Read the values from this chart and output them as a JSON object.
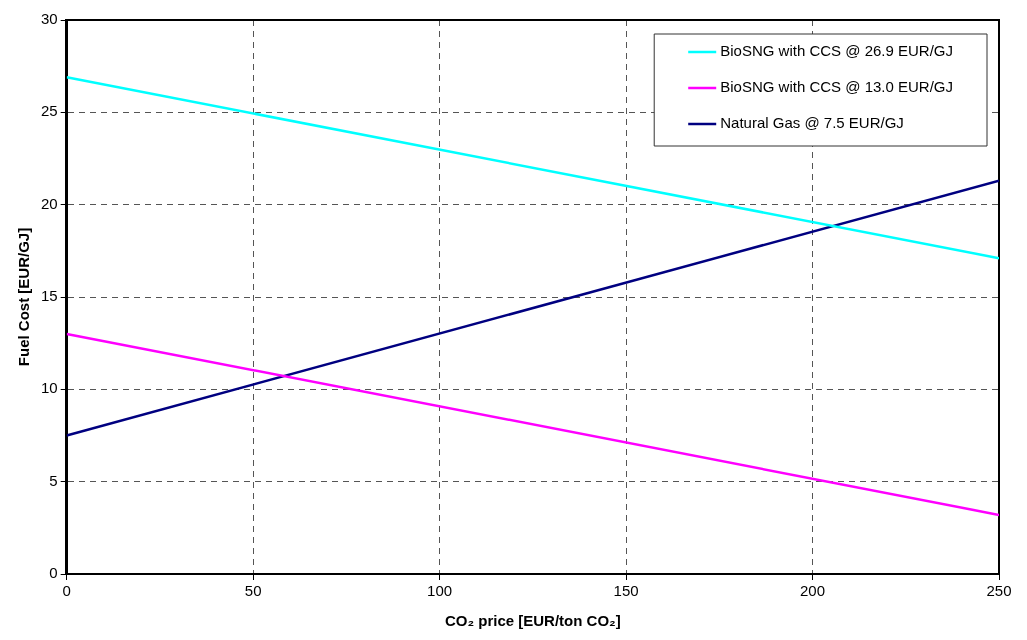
{
  "chart_data": {
    "type": "line",
    "xlabel": "CO₂ price [EUR/ton CO₂]",
    "ylabel": "Fuel Cost [EUR/GJ]",
    "x": [
      0,
      250
    ],
    "series": [
      {
        "name": "BioSNG with CCS @ 26.9 EUR/GJ",
        "color": "#00ffff",
        "values": [
          26.9,
          17.1
        ]
      },
      {
        "name": "BioSNG with CCS @ 13.0 EUR/GJ",
        "color": "#ff00ff",
        "values": [
          13.0,
          3.2
        ]
      },
      {
        "name": "Natural Gas @ 7.5 EUR/GJ",
        "color": "#000080",
        "values": [
          7.5,
          21.3
        ]
      }
    ],
    "xlim": [
      0,
      250
    ],
    "xticks": [
      0,
      50,
      100,
      150,
      200,
      250
    ],
    "ylim": [
      0,
      30
    ],
    "yticks": [
      0,
      5,
      10,
      15,
      20,
      25,
      30
    ],
    "grid": true,
    "legend": "top right",
    "marker": "none",
    "line_style": "solid"
  }
}
